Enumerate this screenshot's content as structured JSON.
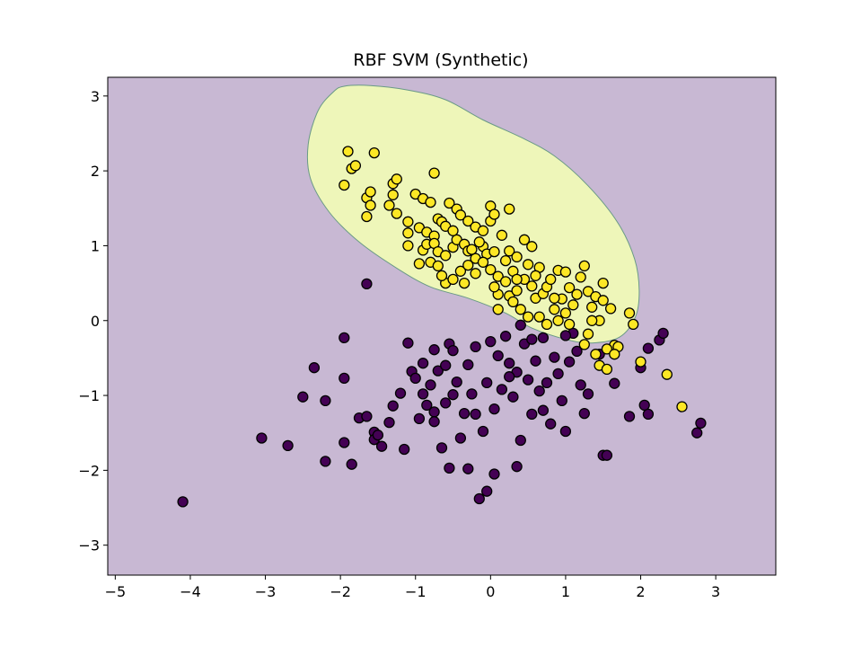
{
  "chart_data": {
    "type": "scatter",
    "title": "RBF SVM (Synthetic)",
    "xlabel": "",
    "ylabel": "",
    "xlim": [
      -5.1,
      3.8
    ],
    "ylim": [
      -3.4,
      3.25
    ],
    "xticks": [
      -5,
      -4,
      -3,
      -2,
      -1,
      0,
      1,
      2,
      3
    ],
    "yticks": [
      -3,
      -2,
      -1,
      0,
      1,
      2,
      3
    ],
    "grid": false,
    "legend": "none",
    "colors": {
      "background_region": "#c8b8d3",
      "decision_region": "#eef6b9",
      "boundary": "#6a9a86",
      "class_0": "#440154",
      "class_1": "#fde725",
      "marker_edge": "#000000"
    },
    "decision_region_boundary": [
      [
        -1.95,
        3.13
      ],
      [
        -1.6,
        3.14
      ],
      [
        -1.1,
        3.08
      ],
      [
        -0.6,
        2.95
      ],
      [
        -0.1,
        2.68
      ],
      [
        0.4,
        2.45
      ],
      [
        0.85,
        2.2
      ],
      [
        1.3,
        1.8
      ],
      [
        1.7,
        1.3
      ],
      [
        1.92,
        0.82
      ],
      [
        1.98,
        0.4
      ],
      [
        1.93,
        0.05
      ],
      [
        1.72,
        -0.22
      ],
      [
        1.35,
        -0.3
      ],
      [
        1.0,
        -0.25
      ],
      [
        0.55,
        -0.1
      ],
      [
        0.2,
        0.1
      ],
      [
        -0.3,
        0.3
      ],
      [
        -0.8,
        0.45
      ],
      [
        -1.25,
        0.7
      ],
      [
        -1.75,
        1.05
      ],
      [
        -2.15,
        1.45
      ],
      [
        -2.4,
        1.9
      ],
      [
        -2.43,
        2.35
      ],
      [
        -2.3,
        2.8
      ],
      [
        -2.1,
        3.05
      ]
    ],
    "series": [
      {
        "class": 0,
        "points": [
          [
            -4.1,
            -2.42
          ],
          [
            -3.05,
            -1.57
          ],
          [
            -2.7,
            -1.67
          ],
          [
            -2.5,
            -1.02
          ],
          [
            -2.35,
            -0.63
          ],
          [
            -2.2,
            -1.88
          ],
          [
            -2.2,
            -1.07
          ],
          [
            -1.95,
            -1.63
          ],
          [
            -1.95,
            -0.77
          ],
          [
            -1.95,
            -0.23
          ],
          [
            -1.85,
            -1.92
          ],
          [
            -1.75,
            -1.3
          ],
          [
            -1.65,
            -1.28
          ],
          [
            -1.65,
            0.49
          ],
          [
            -1.55,
            -1.49
          ],
          [
            -1.55,
            -1.59
          ],
          [
            -1.5,
            -1.53
          ],
          [
            -1.45,
            -1.68
          ],
          [
            -1.35,
            -1.36
          ],
          [
            -1.3,
            -1.14
          ],
          [
            -1.2,
            -0.97
          ],
          [
            -1.15,
            -1.72
          ],
          [
            -1.05,
            -0.68
          ],
          [
            -1.0,
            -0.77
          ],
          [
            -0.95,
            -1.31
          ],
          [
            -0.9,
            -0.98
          ],
          [
            -0.9,
            -0.57
          ],
          [
            -0.85,
            -1.13
          ],
          [
            -0.8,
            -0.86
          ],
          [
            -0.75,
            -1.22
          ],
          [
            -0.75,
            -0.39
          ],
          [
            -0.7,
            -0.67
          ],
          [
            -0.65,
            -1.7
          ],
          [
            -0.6,
            -0.6
          ],
          [
            -0.55,
            -1.97
          ],
          [
            -0.55,
            -0.31
          ],
          [
            -0.5,
            -0.99
          ],
          [
            -0.45,
            -0.82
          ],
          [
            -0.4,
            -1.57
          ],
          [
            -0.35,
            -1.24
          ],
          [
            -0.3,
            -0.59
          ],
          [
            -0.25,
            -0.98
          ],
          [
            -0.2,
            -0.35
          ],
          [
            -0.15,
            -2.38
          ],
          [
            -0.1,
            -1.48
          ],
          [
            -0.05,
            -0.83
          ],
          [
            0.0,
            -0.28
          ],
          [
            0.05,
            -1.18
          ],
          [
            0.05,
            -2.05
          ],
          [
            0.1,
            -0.47
          ],
          [
            0.15,
            -0.92
          ],
          [
            0.2,
            -0.21
          ],
          [
            0.25,
            -0.57
          ],
          [
            0.3,
            -1.02
          ],
          [
            0.35,
            -0.69
          ],
          [
            0.4,
            -1.6
          ],
          [
            0.4,
            -0.06
          ],
          [
            0.45,
            -0.31
          ],
          [
            0.5,
            -0.79
          ],
          [
            0.55,
            -1.25
          ],
          [
            0.6,
            -0.54
          ],
          [
            0.65,
            -0.94
          ],
          [
            0.7,
            -0.23
          ],
          [
            0.75,
            -0.83
          ],
          [
            0.8,
            -1.38
          ],
          [
            0.85,
            -0.49
          ],
          [
            0.9,
            -0.71
          ],
          [
            0.95,
            -1.07
          ],
          [
            1.0,
            -1.48
          ],
          [
            1.05,
            -0.55
          ],
          [
            1.1,
            -0.17
          ],
          [
            1.15,
            -0.41
          ],
          [
            1.2,
            -0.86
          ],
          [
            1.25,
            -1.24
          ],
          [
            1.3,
            -0.98
          ],
          [
            1.45,
            -0.45
          ],
          [
            1.5,
            -1.8
          ],
          [
            1.55,
            -1.8
          ],
          [
            1.65,
            -0.84
          ],
          [
            1.85,
            -1.28
          ],
          [
            2.0,
            -0.63
          ],
          [
            2.05,
            -1.13
          ],
          [
            2.1,
            -1.25
          ],
          [
            2.1,
            -0.37
          ],
          [
            2.25,
            -0.26
          ],
          [
            2.3,
            -0.17
          ],
          [
            2.8,
            -1.37
          ],
          [
            2.75,
            -1.5
          ],
          [
            -0.05,
            -2.28
          ],
          [
            -0.3,
            -1.98
          ],
          [
            -0.75,
            -1.35
          ],
          [
            -0.5,
            -0.4
          ],
          [
            0.25,
            -0.75
          ],
          [
            0.55,
            -0.25
          ],
          [
            1.0,
            -0.2
          ],
          [
            -0.2,
            -1.25
          ],
          [
            0.7,
            -1.2
          ],
          [
            -0.6,
            -1.1
          ],
          [
            -1.1,
            -0.3
          ],
          [
            0.35,
            -1.95
          ]
        ]
      },
      {
        "class": 1,
        "points": [
          [
            -1.9,
            2.26
          ],
          [
            -1.85,
            2.03
          ],
          [
            -1.8,
            2.07
          ],
          [
            -1.55,
            2.24
          ],
          [
            -1.95,
            1.81
          ],
          [
            -1.65,
            1.64
          ],
          [
            -1.6,
            1.72
          ],
          [
            -1.65,
            1.39
          ],
          [
            -1.6,
            1.54
          ],
          [
            -1.35,
            1.54
          ],
          [
            -1.3,
            1.83
          ],
          [
            -1.25,
            1.89
          ],
          [
            -1.3,
            1.68
          ],
          [
            -1.25,
            1.43
          ],
          [
            -0.75,
            1.97
          ],
          [
            -1.0,
            1.69
          ],
          [
            -0.9,
            1.63
          ],
          [
            -0.8,
            1.58
          ],
          [
            -1.1,
            1.32
          ],
          [
            -1.1,
            1.17
          ],
          [
            -0.95,
            1.24
          ],
          [
            -0.85,
            1.18
          ],
          [
            -0.7,
            1.36
          ],
          [
            -0.75,
            1.13
          ],
          [
            -0.65,
            1.32
          ],
          [
            -0.6,
            1.26
          ],
          [
            -0.55,
            1.57
          ],
          [
            -0.45,
            1.49
          ],
          [
            -0.4,
            1.41
          ],
          [
            -0.3,
            1.33
          ],
          [
            -0.2,
            1.25
          ],
          [
            -0.1,
            1.2
          ],
          [
            0.0,
            1.53
          ],
          [
            0.0,
            1.33
          ],
          [
            0.05,
            1.42
          ],
          [
            0.25,
            1.49
          ],
          [
            -0.9,
            0.94
          ],
          [
            -0.85,
            1.02
          ],
          [
            -0.75,
            1.03
          ],
          [
            -0.7,
            0.92
          ],
          [
            -0.95,
            0.76
          ],
          [
            -0.8,
            0.78
          ],
          [
            -0.7,
            0.73
          ],
          [
            -0.6,
            0.87
          ],
          [
            -0.5,
            0.98
          ],
          [
            -0.45,
            1.08
          ],
          [
            -0.35,
            1.02
          ],
          [
            -0.3,
            0.93
          ],
          [
            -0.2,
            0.83
          ],
          [
            -0.1,
            0.99
          ],
          [
            -0.05,
            0.89
          ],
          [
            0.05,
            0.92
          ],
          [
            0.15,
            1.14
          ],
          [
            0.25,
            0.93
          ],
          [
            0.35,
            0.85
          ],
          [
            0.45,
            1.08
          ],
          [
            0.55,
            0.99
          ],
          [
            -0.6,
            0.5
          ],
          [
            -0.5,
            0.55
          ],
          [
            -0.4,
            0.66
          ],
          [
            -0.3,
            0.74
          ],
          [
            -0.2,
            0.63
          ],
          [
            -0.1,
            0.78
          ],
          [
            0.0,
            0.68
          ],
          [
            0.1,
            0.59
          ],
          [
            0.1,
            0.15
          ],
          [
            0.2,
            0.52
          ],
          [
            0.25,
            0.33
          ],
          [
            0.3,
            0.66
          ],
          [
            0.35,
            0.4
          ],
          [
            0.45,
            0.55
          ],
          [
            0.5,
            0.75
          ],
          [
            0.55,
            0.46
          ],
          [
            0.6,
            0.3
          ],
          [
            0.65,
            0.71
          ],
          [
            0.7,
            0.36
          ],
          [
            0.75,
            0.45
          ],
          [
            0.8,
            0.55
          ],
          [
            0.85,
            0.15
          ],
          [
            0.9,
            0.67
          ],
          [
            0.95,
            0.29
          ],
          [
            1.0,
            0.1
          ],
          [
            1.05,
            0.44
          ],
          [
            1.1,
            0.21
          ],
          [
            1.2,
            0.58
          ],
          [
            1.25,
            0.73
          ],
          [
            1.3,
            0.39
          ],
          [
            1.35,
            0.18
          ],
          [
            1.4,
            0.32
          ],
          [
            1.45,
            0.0
          ],
          [
            1.5,
            0.27
          ],
          [
            1.6,
            0.16
          ],
          [
            1.65,
            -0.33
          ],
          [
            1.55,
            -0.38
          ],
          [
            1.7,
            -0.35
          ],
          [
            1.3,
            -0.18
          ],
          [
            1.25,
            -0.32
          ],
          [
            1.4,
            -0.45
          ],
          [
            1.45,
            -0.6
          ],
          [
            1.55,
            -0.65
          ],
          [
            1.65,
            -0.45
          ],
          [
            1.9,
            -0.05
          ],
          [
            1.85,
            0.1
          ],
          [
            2.0,
            -0.55
          ],
          [
            2.35,
            -0.72
          ],
          [
            2.55,
            -1.15
          ],
          [
            1.35,
            0.0
          ],
          [
            0.75,
            -0.05
          ],
          [
            0.5,
            0.05
          ],
          [
            -0.25,
            0.95
          ],
          [
            0.1,
            0.35
          ],
          [
            0.85,
            0.3
          ],
          [
            1.15,
            0.35
          ],
          [
            -0.5,
            1.2
          ],
          [
            -0.15,
            1.05
          ],
          [
            0.3,
            0.25
          ],
          [
            0.65,
            0.05
          ],
          [
            1.05,
            -0.05
          ],
          [
            1.5,
            0.5
          ],
          [
            0.9,
            0.0
          ],
          [
            0.4,
            0.15
          ],
          [
            -1.1,
            1.0
          ],
          [
            -0.35,
            0.5
          ],
          [
            0.05,
            0.45
          ],
          [
            0.6,
            0.6
          ],
          [
            1.0,
            0.65
          ],
          [
            0.2,
            0.8
          ],
          [
            -0.65,
            0.6
          ],
          [
            0.35,
            0.55
          ]
        ]
      }
    ]
  }
}
